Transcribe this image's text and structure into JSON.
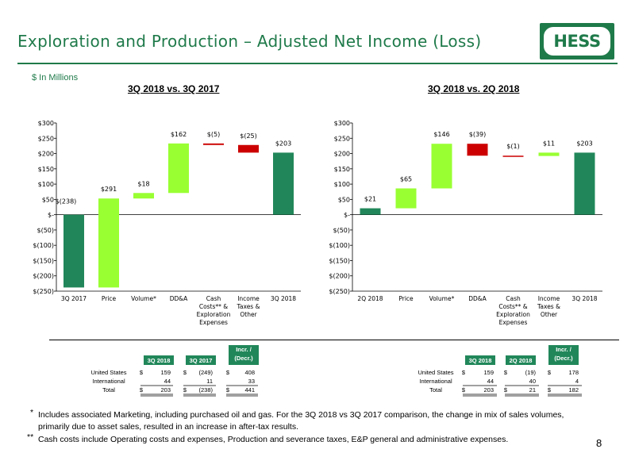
{
  "page": {
    "title": "Exploration and Production – Adjusted Net Income (Loss)",
    "units": "$ In Millions",
    "logo_text": "HESS",
    "page_number": "8",
    "colors": {
      "brand_green": "#1f7a4a",
      "increase": "#99ff33",
      "decrease": "#cc0000",
      "total": "#21875a"
    }
  },
  "chart_data": [
    {
      "type": "bar",
      "waterfall": true,
      "title": "3Q 2018 vs. 3Q 2017",
      "y_tick_labels": [
        "$(250)",
        "$(200)",
        "$(150)",
        "$(100)",
        "$(50)",
        "$-",
        "$50",
        "$100",
        "$150",
        "$200",
        "$250",
        "$300"
      ],
      "ylim": [
        -250,
        300
      ],
      "categories": [
        [
          "3Q 2017"
        ],
        [
          "Price"
        ],
        [
          "Volume*"
        ],
        [
          "DD&A"
        ],
        [
          "Cash",
          "Costs** &",
          "Exploration",
          "Expenses"
        ],
        [
          "Income",
          "Taxes &",
          "Other"
        ],
        [
          "3Q 2018"
        ]
      ],
      "values": [
        -238,
        291,
        18,
        162,
        -5,
        -25,
        203
      ],
      "kinds": [
        "total",
        "inc",
        "inc",
        "inc",
        "dec",
        "dec",
        "total"
      ],
      "data_labels": [
        "$(238)",
        "$291",
        "$18",
        "$162",
        "$(5)",
        "$(25)",
        "$203"
      ]
    },
    {
      "type": "bar",
      "waterfall": true,
      "title": "3Q 2018 vs. 2Q 2018",
      "y_tick_labels": [
        "$(250)",
        "$(200)",
        "$(150)",
        "$(100)",
        "$(50)",
        "$-",
        "$50",
        "$100",
        "$150",
        "$200",
        "$250",
        "$300"
      ],
      "ylim": [
        -250,
        300
      ],
      "categories": [
        [
          "2Q 2018"
        ],
        [
          "Price"
        ],
        [
          "Volume*"
        ],
        [
          "DD&A"
        ],
        [
          "Cash",
          "Costs** &",
          "Exploration",
          "Expenses"
        ],
        [
          "Income",
          "Taxes &",
          "Other"
        ],
        [
          "3Q 2018"
        ]
      ],
      "values": [
        21,
        65,
        146,
        -39,
        -1,
        11,
        203
      ],
      "kinds": [
        "total",
        "inc",
        "inc",
        "dec",
        "dec",
        "inc",
        "total"
      ],
      "data_labels": [
        "$21",
        "$65",
        "$146",
        "$(39)",
        "$(1)",
        "$11",
        "$203"
      ]
    }
  ],
  "tables": [
    {
      "headers": [
        [
          "3Q 2018"
        ],
        [
          "3Q 2017"
        ],
        [
          "Incr. /",
          "(Decr.)"
        ]
      ],
      "rows": [
        {
          "label": "United States",
          "cells": [
            [
              "$",
              "159"
            ],
            [
              "$",
              "(249)"
            ],
            [
              "$",
              "408"
            ]
          ]
        },
        {
          "label": "International",
          "cells": [
            [
              "",
              "44"
            ],
            [
              "",
              "11"
            ],
            [
              "",
              "33"
            ]
          ]
        },
        {
          "label": "Total",
          "cells": [
            [
              "$",
              "203"
            ],
            [
              "$",
              "(238)"
            ],
            [
              "$",
              "441"
            ]
          ]
        }
      ]
    },
    {
      "headers": [
        [
          "3Q 2018"
        ],
        [
          "2Q 2018"
        ],
        [
          "Incr. /",
          "(Decr.)"
        ]
      ],
      "rows": [
        {
          "label": "United States",
          "cells": [
            [
              "$",
              "159"
            ],
            [
              "$",
              "(19)"
            ],
            [
              "$",
              "178"
            ]
          ]
        },
        {
          "label": "International",
          "cells": [
            [
              "",
              "44"
            ],
            [
              "",
              "40"
            ],
            [
              "",
              "4"
            ]
          ]
        },
        {
          "label": "Total",
          "cells": [
            [
              "$",
              "203"
            ],
            [
              "$",
              "21"
            ],
            [
              "$",
              "182"
            ]
          ]
        }
      ]
    }
  ],
  "footnotes": {
    "f1_mark": "*",
    "f1": "Includes associated Marketing, including purchased oil and gas. For the 3Q 2018 vs 3Q 2017 comparison, the change in mix of sales volumes, primarily due to asset sales, resulted in an increase in after-tax results.",
    "f2_mark": "**",
    "f2": "Cash costs include Operating costs and expenses, Production and severance taxes, E&P general and administrative expenses."
  }
}
